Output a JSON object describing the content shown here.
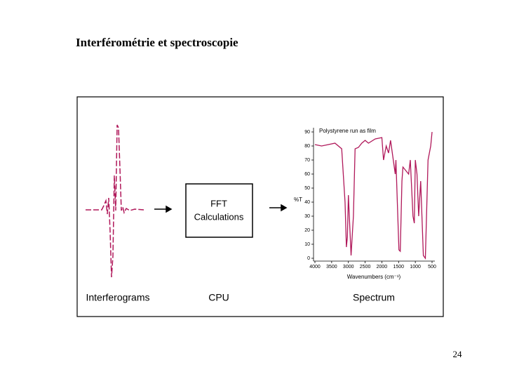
{
  "header": {
    "title": "Interférométrie et spectroscopie"
  },
  "diagram": {
    "fft_box": {
      "line1": "FFT",
      "line2": "Calculations"
    },
    "labels": {
      "interferograms": "Interferograms",
      "cpu": "CPU",
      "spectrum": "Spectrum"
    }
  },
  "chart_data": {
    "type": "line",
    "title": "Polystyrene run as film",
    "x_label": "Wavenumbers (cm⁻¹)",
    "y_label": "%T",
    "x": [
      4000,
      3800,
      3600,
      3400,
      3200,
      3100,
      3060,
      3030,
      3000,
      2920,
      2850,
      2800,
      2700,
      2600,
      2500,
      2400,
      2200,
      2000,
      1950,
      1870,
      1800,
      1740,
      1600,
      1580,
      1490,
      1450,
      1400,
      1370,
      1200,
      1150,
      1070,
      1030,
      1000,
      950,
      900,
      840,
      760,
      700,
      620,
      540,
      500
    ],
    "series": [
      {
        "name": "Polystyrene",
        "color": "#b0185a",
        "values": [
          81,
          80,
          81,
          82,
          78,
          40,
          8,
          15,
          45,
          2,
          30,
          78,
          79,
          82,
          84,
          82,
          85,
          86,
          70,
          80,
          75,
          84,
          60,
          70,
          6,
          5,
          55,
          65,
          60,
          70,
          30,
          25,
          70,
          60,
          30,
          55,
          2,
          0,
          70,
          80,
          90
        ]
      }
    ],
    "xlim": [
      4000,
      500
    ],
    "ylim": [
      0,
      90
    ],
    "xticks": [
      4000,
      3500,
      3000,
      2500,
      2000,
      1500,
      1000,
      500
    ],
    "yticks": [
      0,
      10,
      20,
      30,
      40,
      50,
      60,
      70,
      80,
      90
    ]
  },
  "footer": {
    "page_number": "24"
  }
}
